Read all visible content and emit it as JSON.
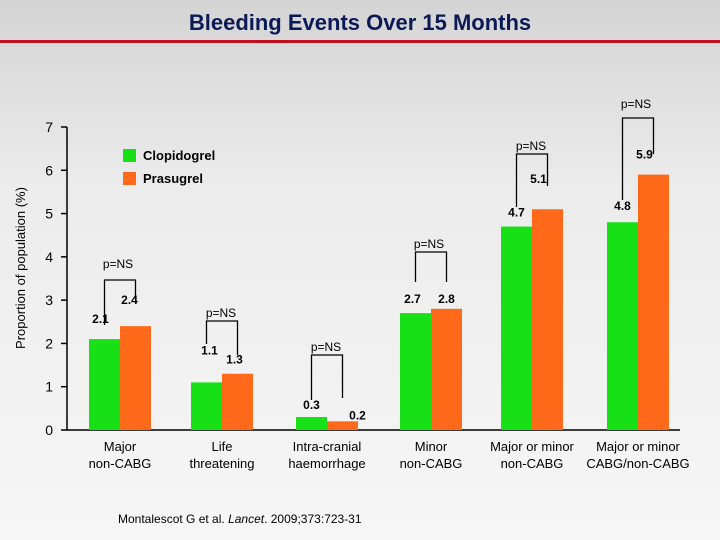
{
  "title": "Bleeding Events Over 15 Months",
  "citation": {
    "authors": "Montalescot G et al. ",
    "journal": "Lancet",
    "ref": ". 2009;373:723-31"
  },
  "colors": {
    "clopidogrel": "#17e017",
    "prasugrel": "#ff6a1a",
    "bracket": "#000000",
    "title_rule": "#c0101b"
  },
  "chart_data": {
    "type": "bar",
    "title": "",
    "xlabel": "",
    "ylabel": "Proportion of population (%)",
    "ylim": [
      0,
      7
    ],
    "yticks": [
      0,
      1,
      2,
      3,
      4,
      5,
      6,
      7
    ],
    "grid": false,
    "legend": "top-left",
    "categories": [
      [
        "Major",
        "non-CABG"
      ],
      [
        "Life",
        "threatening"
      ],
      [
        "Intra-cranial",
        "haemorrhage"
      ],
      [
        "Minor",
        "non-CABG"
      ],
      [
        "Major or minor",
        "non-CABG"
      ],
      [
        "Major or minor",
        "CABG/non-CABG"
      ]
    ],
    "series": [
      {
        "name": "Clopidogrel",
        "values": [
          2.1,
          1.1,
          0.3,
          2.7,
          4.7,
          4.8
        ],
        "labels": [
          "2.1",
          "1.1",
          "0.3",
          "2.7",
          "4.7",
          "4.8"
        ]
      },
      {
        "name": "Prasugrel",
        "values": [
          2.4,
          1.3,
          0.2,
          2.8,
          5.1,
          5.9
        ],
        "labels": [
          "2.4",
          "1.3",
          "0.2",
          "2.8",
          "5.1",
          "5.9"
        ]
      }
    ],
    "annotations": [
      "p=NS",
      "p=NS",
      "p=NS",
      "p=NS",
      "p=NS",
      "p=NS"
    ]
  }
}
